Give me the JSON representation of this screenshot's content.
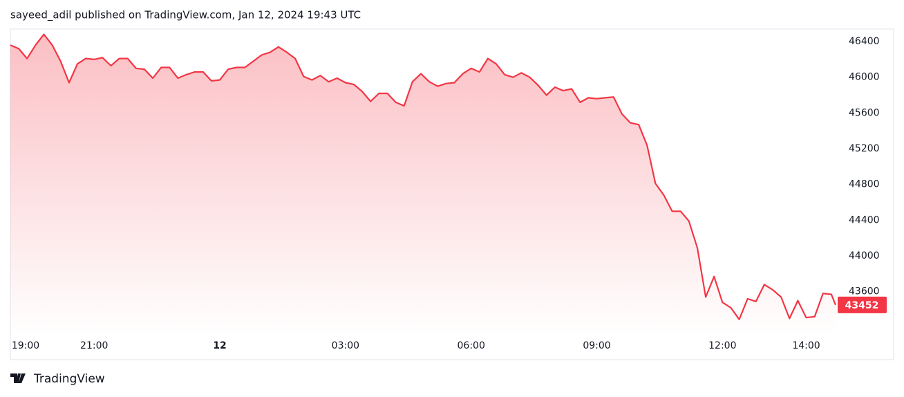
{
  "chart_data": {
    "type": "area",
    "title": "sayeed_adil published on TradingView.com, Jan 12, 2024 19:43 UTC",
    "source": "TradingView",
    "color": "#f23645",
    "x": [
      -5.0,
      -4.8,
      -4.6,
      -4.4,
      -4.2,
      -4.0,
      -3.8,
      -3.6,
      -3.4,
      -3.2,
      -3.0,
      -2.8,
      -2.6,
      -2.4,
      -2.2,
      -2.0,
      -1.8,
      -1.6,
      -1.4,
      -1.2,
      -1.0,
      -0.8,
      -0.6,
      -0.4,
      -0.2,
      0.0,
      0.2,
      0.4,
      0.6,
      0.8,
      1.0,
      1.2,
      1.4,
      1.6,
      1.8,
      2.0,
      2.2,
      2.4,
      2.6,
      2.8,
      3.0,
      3.2,
      3.4,
      3.6,
      3.8,
      4.0,
      4.2,
      4.4,
      4.6,
      4.8,
      5.0,
      5.2,
      5.4,
      5.6,
      5.8,
      6.0,
      6.2,
      6.4,
      6.6,
      6.8,
      7.0,
      7.2,
      7.4,
      7.6,
      7.8,
      8.0,
      8.2,
      8.4,
      8.6,
      8.8,
      9.0,
      9.2,
      9.4,
      9.6,
      9.8,
      10.0,
      10.2,
      10.4,
      10.6,
      10.8,
      11.0,
      11.2,
      11.4,
      11.6,
      11.8,
      12.0,
      12.2,
      12.4,
      12.6,
      12.8,
      13.0,
      13.2,
      13.4,
      13.6,
      13.8,
      14.0,
      14.2,
      14.4,
      14.6,
      14.7
    ],
    "values": [
      46360,
      46320,
      46210,
      46360,
      46480,
      46360,
      46180,
      45940,
      46150,
      46210,
      46200,
      46220,
      46130,
      46210,
      46210,
      46100,
      46090,
      45990,
      46110,
      46110,
      45990,
      46030,
      46060,
      46060,
      45960,
      45970,
      46090,
      46110,
      46110,
      46180,
      46250,
      46280,
      46340,
      46280,
      46210,
      46010,
      45970,
      46020,
      45950,
      45990,
      45940,
      45920,
      45840,
      45730,
      45820,
      45820,
      45720,
      45680,
      45950,
      46040,
      45950,
      45900,
      45930,
      45940,
      46040,
      46100,
      46060,
      46210,
      46150,
      46030,
      46000,
      46050,
      46000,
      45910,
      45800,
      45890,
      45850,
      45870,
      45720,
      45770,
      45760,
      45770,
      45780,
      45590,
      45490,
      45470,
      45240,
      44810,
      44680,
      44500,
      44500,
      44390,
      44090,
      43540,
      43770,
      43480,
      43420,
      43290,
      43520,
      43490,
      43680,
      43620,
      43540,
      43300,
      43500,
      43310,
      43320,
      43580,
      43570,
      43452
    ],
    "last_value": 43452,
    "xlim": [
      -5,
      14.75
    ],
    "xticks": [
      {
        "value": -5,
        "label": "19:00"
      },
      {
        "value": -3,
        "label": "21:00"
      },
      {
        "value": 0,
        "label": "12"
      },
      {
        "value": 3,
        "label": "03:00"
      },
      {
        "value": 6,
        "label": "06:00"
      },
      {
        "value": 9,
        "label": "09:00"
      },
      {
        "value": 12,
        "label": "12:00"
      },
      {
        "value": 14,
        "label": "14:00"
      }
    ],
    "ylim": [
      43110,
      46540
    ],
    "yticks": [
      43600,
      44000,
      44400,
      44800,
      45200,
      45600,
      46000,
      46400
    ],
    "grid": false
  }
}
